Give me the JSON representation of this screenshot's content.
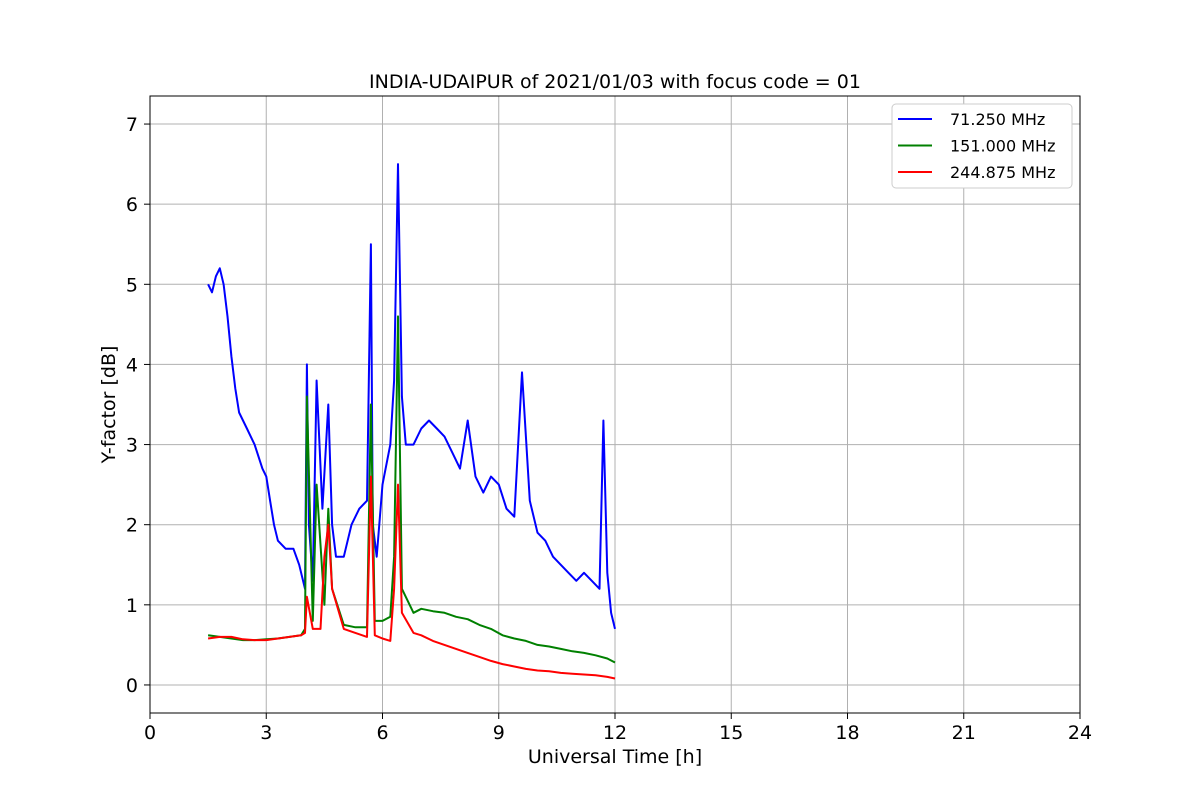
{
  "chart_data": {
    "type": "line",
    "title": "INDIA-UDAIPUR of 2021/01/03 with focus code = 01",
    "xlabel": "Universal Time [h]",
    "ylabel": "Y-factor [dB]",
    "xlim": [
      0,
      24
    ],
    "ylim": [
      -0.35,
      7.35
    ],
    "xticks": [
      0,
      3,
      6,
      9,
      12,
      15,
      18,
      21,
      24
    ],
    "yticks": [
      0,
      1,
      2,
      3,
      4,
      5,
      6,
      7
    ],
    "grid": true,
    "legend_position": "top-right",
    "series": [
      {
        "name": "71.250 MHz",
        "legend_label": "  71.250 MHz",
        "color": "#0000ff",
        "x": [
          1.5,
          1.6,
          1.7,
          1.8,
          1.9,
          2.0,
          2.1,
          2.2,
          2.3,
          2.5,
          2.7,
          2.9,
          3.0,
          3.1,
          3.2,
          3.3,
          3.5,
          3.7,
          3.85,
          4.0,
          4.05,
          4.1,
          4.2,
          4.3,
          4.45,
          4.6,
          4.7,
          4.8,
          5.0,
          5.2,
          5.4,
          5.6,
          5.7,
          5.75,
          5.85,
          6.0,
          6.2,
          6.3,
          6.4,
          6.5,
          6.6,
          6.8,
          7.0,
          7.2,
          7.4,
          7.6,
          7.8,
          8.0,
          8.2,
          8.4,
          8.6,
          8.8,
          9.0,
          9.2,
          9.4,
          9.6,
          9.8,
          10.0,
          10.2,
          10.4,
          10.6,
          10.8,
          11.0,
          11.2,
          11.4,
          11.6,
          11.7,
          11.8,
          11.9,
          12.0
        ],
        "y": [
          5.0,
          4.9,
          5.1,
          5.2,
          5.0,
          4.6,
          4.1,
          3.7,
          3.4,
          3.2,
          3.0,
          2.7,
          2.6,
          2.3,
          2.0,
          1.8,
          1.7,
          1.7,
          1.5,
          1.2,
          4.0,
          2.0,
          1.3,
          3.8,
          2.2,
          3.5,
          2.0,
          1.6,
          1.6,
          2.0,
          2.2,
          2.3,
          5.5,
          2.0,
          1.6,
          2.5,
          3.0,
          3.8,
          6.5,
          3.6,
          3.0,
          3.0,
          3.2,
          3.3,
          3.2,
          3.1,
          2.9,
          2.7,
          3.3,
          2.6,
          2.4,
          2.6,
          2.5,
          2.2,
          2.1,
          3.9,
          2.3,
          1.9,
          1.8,
          1.6,
          1.5,
          1.4,
          1.3,
          1.4,
          1.3,
          1.2,
          3.3,
          1.4,
          0.9,
          0.7
        ]
      },
      {
        "name": "151.000 MHz",
        "legend_label": "151.000 MHz",
        "color": "#008000",
        "x": [
          1.5,
          1.8,
          2.1,
          2.4,
          2.7,
          3.0,
          3.3,
          3.6,
          3.9,
          4.0,
          4.05,
          4.2,
          4.3,
          4.5,
          4.6,
          4.7,
          5.0,
          5.3,
          5.6,
          5.7,
          5.8,
          6.0,
          6.2,
          6.3,
          6.4,
          6.5,
          6.8,
          7.0,
          7.3,
          7.6,
          7.9,
          8.2,
          8.5,
          8.8,
          9.1,
          9.4,
          9.7,
          10.0,
          10.3,
          10.6,
          10.9,
          11.2,
          11.5,
          11.8,
          12.0
        ],
        "y": [
          0.62,
          0.6,
          0.58,
          0.56,
          0.56,
          0.57,
          0.58,
          0.6,
          0.62,
          0.7,
          3.6,
          0.8,
          2.5,
          1.0,
          2.2,
          1.2,
          0.75,
          0.72,
          0.72,
          3.5,
          0.8,
          0.8,
          0.85,
          1.6,
          4.6,
          1.2,
          0.9,
          0.95,
          0.92,
          0.9,
          0.85,
          0.82,
          0.75,
          0.7,
          0.62,
          0.58,
          0.55,
          0.5,
          0.48,
          0.45,
          0.42,
          0.4,
          0.37,
          0.33,
          0.28
        ]
      },
      {
        "name": "244.875 MHz",
        "legend_label": "244.875 MHz",
        "color": "#ff0000",
        "x": [
          1.5,
          1.8,
          2.1,
          2.4,
          2.7,
          3.0,
          3.3,
          3.6,
          3.9,
          4.0,
          4.05,
          4.2,
          4.4,
          4.5,
          4.6,
          4.7,
          5.0,
          5.3,
          5.6,
          5.7,
          5.8,
          6.0,
          6.2,
          6.3,
          6.4,
          6.5,
          6.8,
          7.0,
          7.3,
          7.6,
          7.9,
          8.2,
          8.5,
          8.8,
          9.1,
          9.4,
          9.7,
          10.0,
          10.3,
          10.6,
          10.9,
          11.2,
          11.5,
          11.8,
          12.0
        ],
        "y": [
          0.58,
          0.6,
          0.6,
          0.57,
          0.56,
          0.56,
          0.58,
          0.6,
          0.62,
          0.65,
          1.1,
          0.7,
          0.7,
          1.6,
          2.0,
          1.2,
          0.7,
          0.65,
          0.6,
          2.6,
          0.62,
          0.58,
          0.55,
          1.2,
          2.5,
          0.9,
          0.65,
          0.62,
          0.55,
          0.5,
          0.45,
          0.4,
          0.35,
          0.3,
          0.26,
          0.23,
          0.2,
          0.18,
          0.17,
          0.15,
          0.14,
          0.13,
          0.12,
          0.1,
          0.08
        ]
      }
    ]
  }
}
